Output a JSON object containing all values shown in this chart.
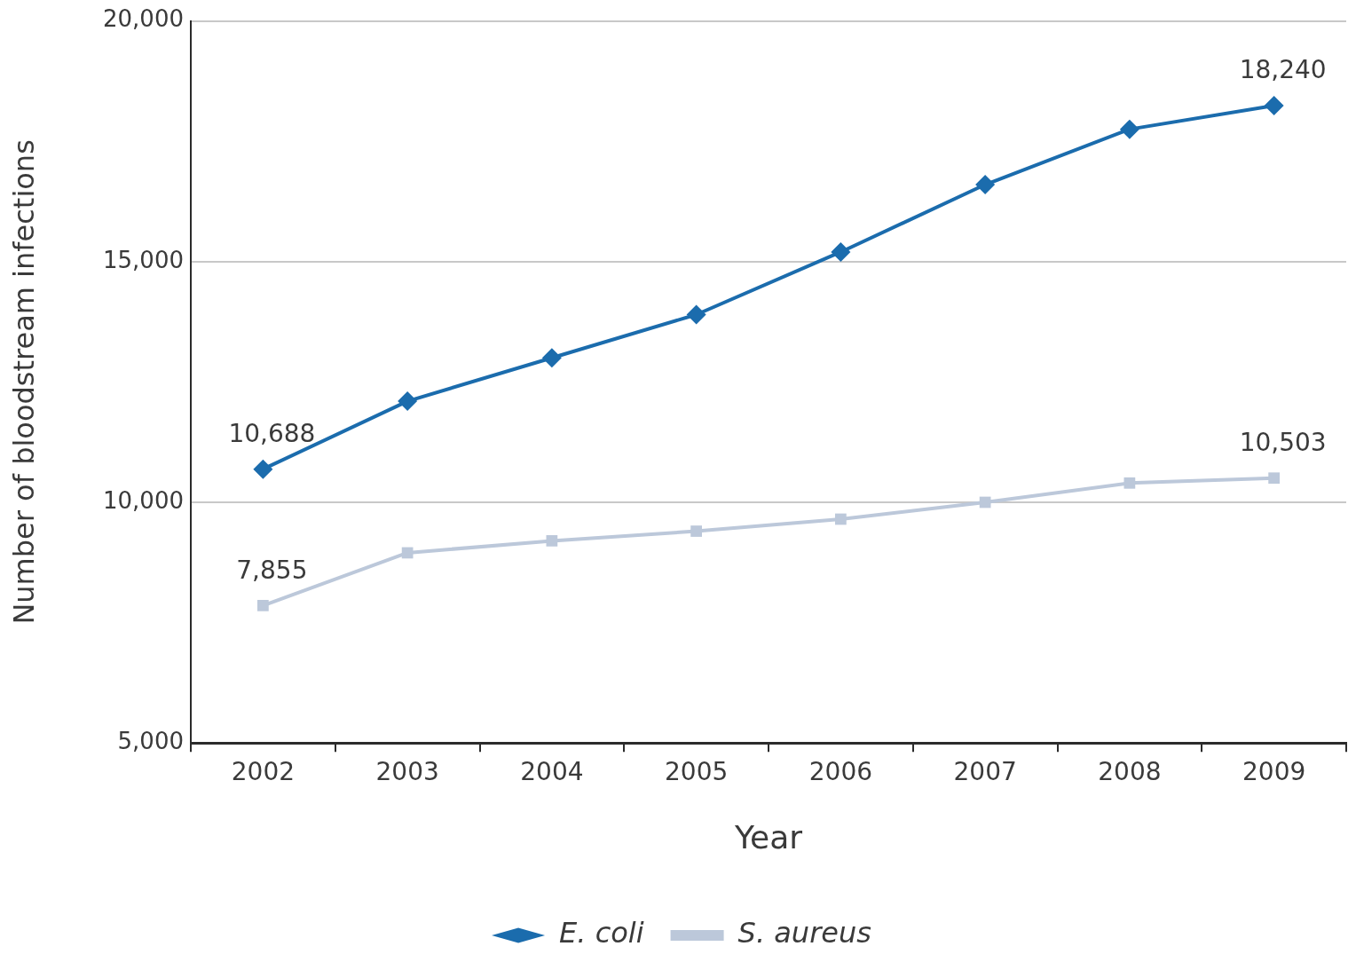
{
  "chart_data": {
    "type": "line",
    "xlabel": "Year",
    "ylabel": "Number of bloodstream infections",
    "categories": [
      "2002",
      "2003",
      "2004",
      "2005",
      "2006",
      "2007",
      "2008",
      "2009"
    ],
    "series": [
      {
        "name": "E. coli",
        "color": "#1b6cad",
        "marker": "diamond",
        "values": [
          10688,
          12100,
          13000,
          13900,
          15200,
          16600,
          17750,
          18240
        ],
        "value_labels": [
          "10,688",
          null,
          null,
          null,
          null,
          null,
          null,
          "18,240"
        ]
      },
      {
        "name": "S. aureus",
        "color": "#bcc8da",
        "marker": "square",
        "values": [
          7855,
          8950,
          9200,
          9400,
          9650,
          10000,
          10400,
          10503
        ],
        "value_labels": [
          "7,855",
          null,
          null,
          null,
          null,
          null,
          null,
          "10,503"
        ]
      }
    ],
    "ylim": [
      5000,
      20000
    ],
    "yticks": [
      {
        "value": 5000,
        "label": "5,000"
      },
      {
        "value": 10000,
        "label": "10,000"
      },
      {
        "value": 15000,
        "label": "15,000"
      },
      {
        "value": 20000,
        "label": "20,000"
      }
    ],
    "grid": "y",
    "legend": "bottom",
    "line_style": "solid"
  }
}
